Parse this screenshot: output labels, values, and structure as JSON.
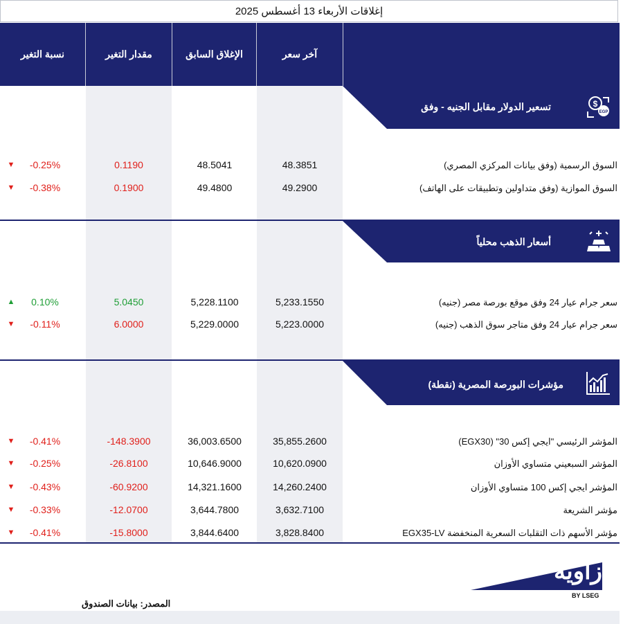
{
  "title": "إغلاقات الأربعاء 13 أغسطس 2025",
  "columns": {
    "last_price": "آخر سعر",
    "prev_close": "الإغلاق السابق",
    "change": "مقدار التغير",
    "change_pct": "نسبة التغير"
  },
  "sections": [
    {
      "title": "تسعير  الدولار مقابل الجنيه - وفق",
      "icon": "dollar-egp-exchange-icon",
      "rows": [
        {
          "label": "السوق الرسمية (وفق بيانات المركزي المصري)",
          "last": "48.3851",
          "prev": "48.5041",
          "change": "0.1190",
          "pct": "-0.25%",
          "direction": "down"
        },
        {
          "label": "السوق الموازية (وفق متداولين وتطبيقات على الهاتف)",
          "last": "49.2900",
          "prev": "49.4800",
          "change": "0.1900",
          "pct": "-0.38%",
          "direction": "down"
        }
      ]
    },
    {
      "title": "أسعار الذهب محلياً",
      "icon": "gold-bars-icon",
      "rows": [
        {
          "label": "سعر جرام عيار 24 وفق موقع بورصة مصر (جنيه)",
          "last": "5,233.1550",
          "prev": "5,228.1100",
          "change": "5.0450",
          "pct": "0.10%",
          "direction": "up"
        },
        {
          "label": "سعر جرام عيار 24 وفق متاجر سوق الذهب (جنيه)",
          "last": "5,223.0000",
          "prev": "5,229.0000",
          "change": "6.0000",
          "pct": "-0.11%",
          "direction": "down"
        }
      ]
    },
    {
      "title": "مؤشرات البورصة المصرية (نقطة)",
      "icon": "stock-chart-icon",
      "rows": [
        {
          "label": "المؤشر الرئيسي \"ايجي إكس 30\" (EGX30)",
          "last": "35,855.2600",
          "prev": "36,003.6500",
          "change": "-148.3900",
          "pct": "-0.41%",
          "direction": "down"
        },
        {
          "label": "المؤشر السبعيني متساوي الأوزان",
          "last": "10,620.0900",
          "prev": "10,646.9000",
          "change": "-26.8100",
          "pct": "-0.25%",
          "direction": "down"
        },
        {
          "label": "المؤشر ايجي إكس 100 متساوي الأوزان",
          "last": "14,260.2400",
          "prev": "14,321.1600",
          "change": "-60.9200",
          "pct": "-0.43%",
          "direction": "down"
        },
        {
          "label": "مؤشر الشريعة",
          "last": "3,632.7100",
          "prev": "3,644.7800",
          "change": "-12.0700",
          "pct": "-0.33%",
          "direction": "down"
        },
        {
          "label": "مؤشر الأسهم ذات التقلبات السعرية المنخفضة EGX35-LV",
          "last": "3,828.8400",
          "prev": "3,844.6400",
          "change": "-15.8000",
          "pct": "-0.41%",
          "direction": "down"
        }
      ]
    }
  ],
  "arrows": {
    "down": "▼",
    "up": "▲"
  },
  "source": "المصدر: بيانات الصندوق",
  "logo": {
    "name": "زاوية",
    "byline": "BY LSEG"
  },
  "colors": {
    "navy": "#1d2470",
    "red": "#e0201b",
    "green": "#1f9e36",
    "shade": "#eeeff3"
  }
}
